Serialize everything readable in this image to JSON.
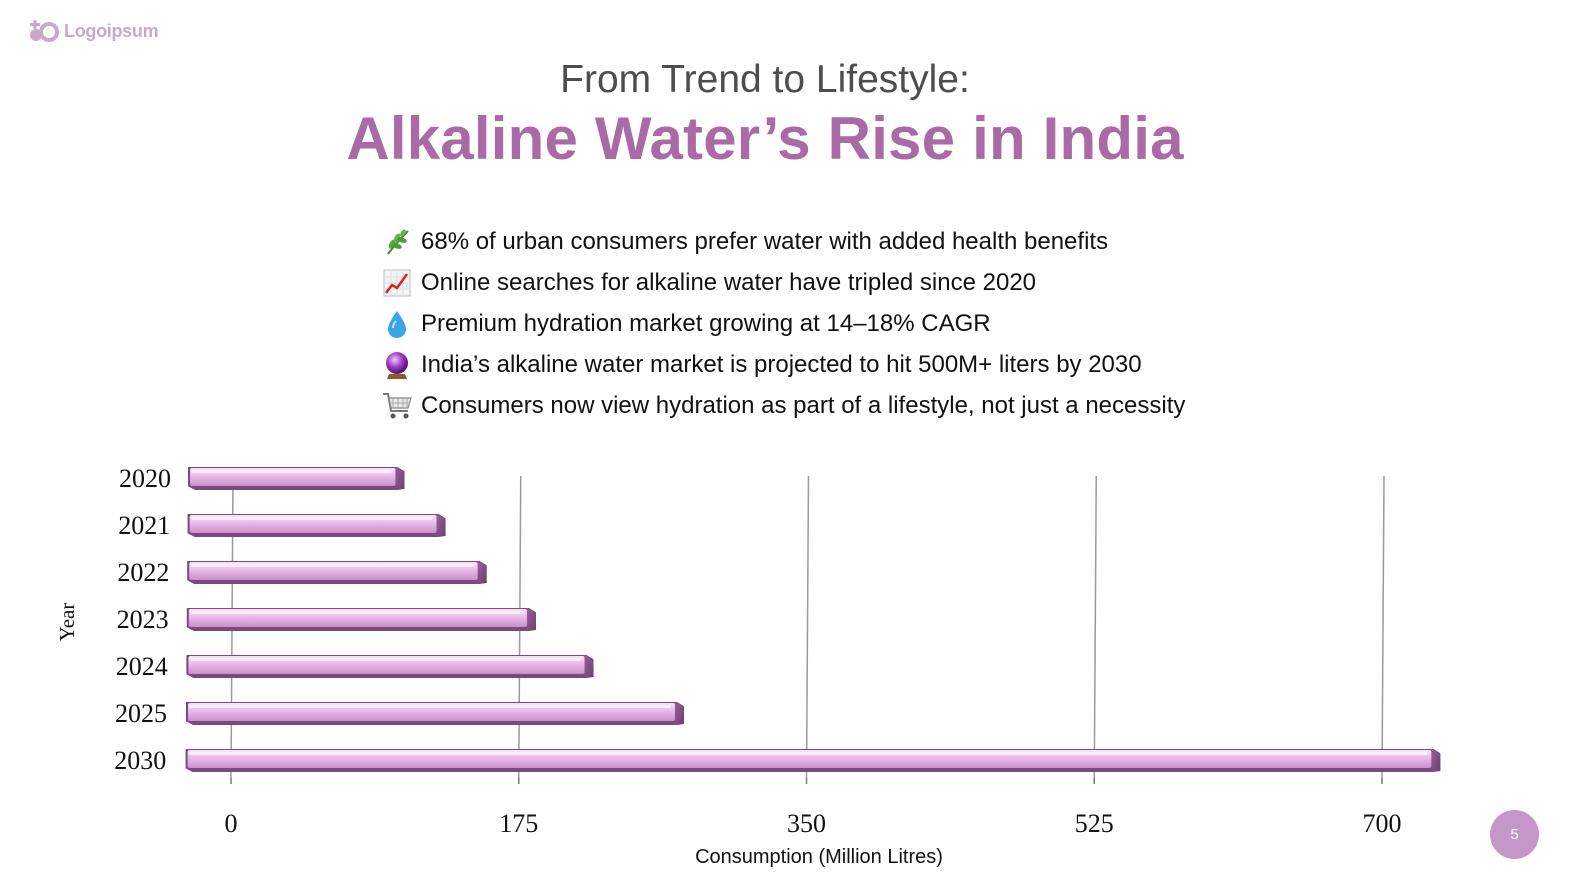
{
  "logo": {
    "text": "Logoipsum",
    "icon": "logo-mark-icon"
  },
  "header": {
    "kicker": "From Trend to Lifestyle:",
    "title": "Alkaline Water’s Rise in India",
    "accent_color": "#a96aa6"
  },
  "bullets": [
    {
      "icon": "herb-icon",
      "text": "68% of urban consumers prefer water with added health benefits"
    },
    {
      "icon": "chart-increasing-icon",
      "text": "Online searches for alkaline water have tripled since 2020"
    },
    {
      "icon": "droplet-icon",
      "text": "Premium hydration market growing at 14–18% CAGR"
    },
    {
      "icon": "crystal-ball-icon",
      "text": "India’s alkaline water market is projected to hit 500M+ liters by 2030"
    },
    {
      "icon": "shopping-cart-icon",
      "text": "Consumers now view hydration as part of a lifestyle, not just a necessity"
    }
  ],
  "chart_data": {
    "type": "bar",
    "orientation": "horizontal",
    "title": "",
    "categories": [
      "2020",
      "2021",
      "2022",
      "2023",
      "2024",
      "2025",
      "2030"
    ],
    "values": [
      100,
      125,
      150,
      180,
      215,
      270,
      730
    ],
    "xlabel": "Consumption (Million Litres)",
    "ylabel": "Year",
    "xlim": [
      0,
      700
    ],
    "xticks": [
      "0",
      "175",
      "350",
      "525",
      "700"
    ],
    "grid": "vertical",
    "bar_color": "#e9b9ea"
  },
  "page_number": "5",
  "page_badge_color": "#c596c8"
}
